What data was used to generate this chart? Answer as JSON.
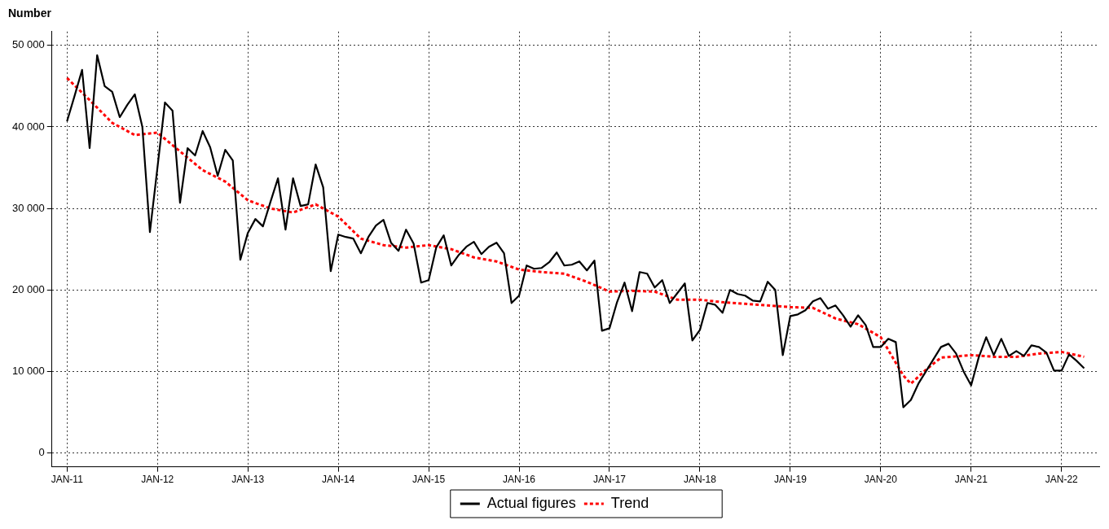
{
  "chart_data": {
    "type": "line",
    "ylabel": "Number",
    "x": [
      "2011-01",
      "2011-02",
      "2011-03",
      "2011-04",
      "2011-05",
      "2011-06",
      "2011-07",
      "2011-08",
      "2011-09",
      "2011-10",
      "2011-11",
      "2011-12",
      "2012-01",
      "2012-02",
      "2012-03",
      "2012-04",
      "2012-05",
      "2012-06",
      "2012-07",
      "2012-08",
      "2012-09",
      "2012-10",
      "2012-11",
      "2012-12",
      "2013-01",
      "2013-02",
      "2013-03",
      "2013-04",
      "2013-05",
      "2013-06",
      "2013-07",
      "2013-08",
      "2013-09",
      "2013-10",
      "2013-11",
      "2013-12",
      "2014-01",
      "2014-02",
      "2014-03",
      "2014-04",
      "2014-05",
      "2014-06",
      "2014-07",
      "2014-08",
      "2014-09",
      "2014-10",
      "2014-11",
      "2014-12",
      "2015-01",
      "2015-02",
      "2015-03",
      "2015-04",
      "2015-05",
      "2015-06",
      "2015-07",
      "2015-08",
      "2015-09",
      "2015-10",
      "2015-11",
      "2015-12",
      "2016-01",
      "2016-02",
      "2016-03",
      "2016-04",
      "2016-05",
      "2016-06",
      "2016-07",
      "2016-08",
      "2016-09",
      "2016-10",
      "2016-11",
      "2016-12",
      "2017-01",
      "2017-02",
      "2017-03",
      "2017-04",
      "2017-05",
      "2017-06",
      "2017-07",
      "2017-08",
      "2017-09",
      "2017-10",
      "2017-11",
      "2017-12",
      "2018-01",
      "2018-02",
      "2018-03",
      "2018-04",
      "2018-05",
      "2018-06",
      "2018-07",
      "2018-08",
      "2018-09",
      "2018-10",
      "2018-11",
      "2018-12",
      "2019-01",
      "2019-02",
      "2019-03",
      "2019-04",
      "2019-05",
      "2019-06",
      "2019-07",
      "2019-08",
      "2019-09",
      "2019-10",
      "2019-11",
      "2019-12",
      "2020-01",
      "2020-02",
      "2020-03",
      "2020-04",
      "2020-05",
      "2020-06",
      "2020-07",
      "2020-08",
      "2020-09",
      "2020-10",
      "2020-11",
      "2020-12",
      "2021-01",
      "2021-02",
      "2021-03",
      "2021-04",
      "2021-05",
      "2021-06",
      "2021-07",
      "2021-08",
      "2021-09",
      "2021-10",
      "2021-11",
      "2021-12",
      "2022-01",
      "2022-02",
      "2022-03",
      "2022-04"
    ],
    "series": [
      {
        "name": "Actual figures",
        "color": "#000000",
        "line_style": "solid",
        "values": [
          40700,
          43800,
          47000,
          37400,
          48800,
          45000,
          44300,
          41200,
          42700,
          44000,
          40000,
          27100,
          35000,
          43000,
          42000,
          30700,
          37400,
          36500,
          39500,
          37500,
          34000,
          37200,
          35900,
          23700,
          27000,
          28700,
          27800,
          30800,
          33700,
          27400,
          33700,
          30300,
          30500,
          35400,
          32600,
          22300,
          26800,
          26500,
          26300,
          24500,
          26500,
          27900,
          28600,
          25800,
          24800,
          27400,
          25700,
          20900,
          21200,
          25200,
          26700,
          23000,
          24300,
          25300,
          25900,
          24400,
          25300,
          25800,
          24500,
          18400,
          19300,
          23000,
          22600,
          22700,
          23400,
          24600,
          23000,
          23100,
          23500,
          22400,
          23600,
          15000,
          15300,
          18500,
          20900,
          17400,
          22200,
          22000,
          20300,
          21200,
          18400,
          19600,
          20800,
          13800,
          15100,
          18400,
          18200,
          17200,
          20000,
          19500,
          19300,
          18700,
          18600,
          21000,
          20000,
          12000,
          16800,
          17000,
          17500,
          18600,
          19000,
          17700,
          18100,
          16900,
          15500,
          16900,
          15700,
          13000,
          13000,
          14000,
          13600,
          5600,
          6500,
          8500,
          10000,
          11500,
          13000,
          13400,
          12200,
          10000,
          8300,
          11700,
          14200,
          12000,
          14000,
          11900,
          12500,
          11900,
          13200,
          13000,
          12300,
          10100,
          10100,
          12100,
          11300,
          10400
        ]
      },
      {
        "name": "Trend",
        "color": "#ff0000",
        "line_style": "dashed",
        "x": [
          "2011-01",
          "2011-04",
          "2011-07",
          "2011-10",
          "2012-01",
          "2012-04",
          "2012-07",
          "2012-10",
          "2013-01",
          "2013-04",
          "2013-07",
          "2013-10",
          "2014-01",
          "2014-04",
          "2014-07",
          "2014-10",
          "2015-01",
          "2015-04",
          "2015-07",
          "2015-10",
          "2016-01",
          "2016-04",
          "2016-07",
          "2016-10",
          "2017-01",
          "2017-04",
          "2017-07",
          "2017-10",
          "2018-01",
          "2018-04",
          "2018-07",
          "2018-10",
          "2019-01",
          "2019-04",
          "2019-07",
          "2019-10",
          "2020-01",
          "2020-04",
          "2020-05",
          "2020-07",
          "2020-09",
          "2021-01",
          "2021-04",
          "2021-07",
          "2021-10",
          "2022-01",
          "2022-04"
        ],
        "values": [
          46000,
          43300,
          40500,
          39000,
          39300,
          37000,
          34700,
          33300,
          31000,
          30000,
          29500,
          30500,
          29000,
          26300,
          25500,
          25200,
          25500,
          25000,
          24000,
          23500,
          22500,
          22200,
          22000,
          21000,
          19800,
          19900,
          19800,
          18800,
          18800,
          18500,
          18300,
          18100,
          17900,
          17800,
          16500,
          15800,
          14200,
          9500,
          8500,
          10200,
          11700,
          12000,
          11800,
          11800,
          12200,
          12400,
          11800
        ]
      }
    ],
    "xlim": [
      "2010-11",
      "2022-06"
    ],
    "xticks": [
      {
        "value": "2011-01",
        "label": "JAN-11"
      },
      {
        "value": "2012-01",
        "label": "JAN-12"
      },
      {
        "value": "2013-01",
        "label": "JAN-13"
      },
      {
        "value": "2014-01",
        "label": "JAN-14"
      },
      {
        "value": "2015-01",
        "label": "JAN-15"
      },
      {
        "value": "2016-01",
        "label": "JAN-16"
      },
      {
        "value": "2017-01",
        "label": "JAN-17"
      },
      {
        "value": "2018-01",
        "label": "JAN-18"
      },
      {
        "value": "2019-01",
        "label": "JAN-19"
      },
      {
        "value": "2020-01",
        "label": "JAN-20"
      },
      {
        "value": "2021-01",
        "label": "JAN-21"
      },
      {
        "value": "2022-01",
        "label": "JAN-22"
      }
    ],
    "ylim": [
      -1700,
      51700
    ],
    "yticks": [
      0,
      {
        "value": 10000,
        "label": "10 000"
      },
      {
        "value": 20000,
        "label": "20 000"
      },
      {
        "value": 30000,
        "label": "30 000"
      },
      {
        "value": 40000,
        "label": "40 000"
      },
      {
        "value": 50000,
        "label": "50 000"
      }
    ],
    "grid": true,
    "legend": "bottom",
    "marker": "none"
  }
}
